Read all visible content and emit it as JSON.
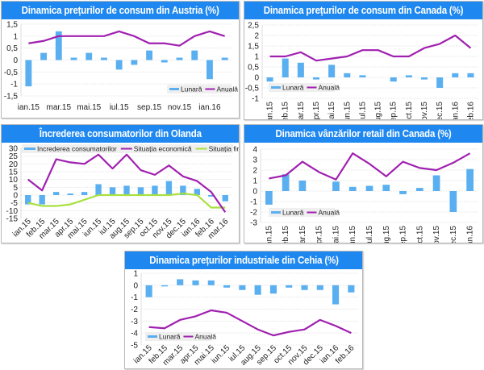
{
  "colors": {
    "bar": "#5aaff0",
    "annual": "#a020b0",
    "financial": "#a8e040",
    "title_bg": "#1e88f0",
    "grid": "#e4e4e4"
  },
  "chart_data": [
    {
      "id": "austria-cpi",
      "type": "bar+line",
      "title": "Dinamica prețurilor de consum din Austria (%)",
      "categories": [
        "ian.15",
        "feb.15",
        "mar.15",
        "apr.15",
        "mai.15",
        "iun.15",
        "iul.15",
        "aug.15",
        "sep.15",
        "oct.15",
        "nov.15",
        "dec.15",
        "ian.16",
        "feb.16"
      ],
      "x_tick_labels": [
        "ian.15",
        "mar.15",
        "mai.15",
        "iul.15",
        "sep.15",
        "nov.15",
        "ian.16"
      ],
      "series": [
        {
          "name": "Lunară",
          "kind": "bar",
          "values": [
            -1.1,
            0.3,
            1.2,
            0.1,
            0.3,
            0.1,
            -0.4,
            -0.2,
            0.4,
            -0.1,
            0.1,
            0.4,
            -0.8,
            0.1
          ]
        },
        {
          "name": "Anuală",
          "kind": "line",
          "values": [
            0.7,
            0.8,
            1.0,
            1.0,
            1.0,
            1.0,
            1.2,
            1.0,
            0.7,
            0.7,
            0.6,
            1.0,
            1.2,
            1.0
          ]
        }
      ],
      "y_ticks": [
        "1,5",
        "1",
        "0,5",
        "0",
        "-0,5",
        "-1",
        "-1,5"
      ],
      "ylim": [
        -1.5,
        1.5
      ],
      "legend": "bottom-right",
      "xlabel": "",
      "ylabel": ""
    },
    {
      "id": "canada-cpi",
      "type": "bar+line",
      "title": "Dinamica prețurilor de consum din Canada (%)",
      "categories": [
        "ian.15",
        "feb.15",
        "mar.15",
        "apr.15",
        "mai.15",
        "iun.15",
        "iul.15",
        "aug.15",
        "sep.15",
        "oct.15",
        "nov.15",
        "dec.15",
        "ian.16",
        "feb.16"
      ],
      "x_tick_labels": [
        "ian.15",
        "feb.15",
        "mar.15",
        "apr.15",
        "mai.15",
        "iun.15",
        "iul.15",
        "aug.15",
        "sep.15",
        "oct.15",
        "nov.15",
        "dec.15",
        "ian.16",
        "feb.16"
      ],
      "series": [
        {
          "name": "Lunară",
          "kind": "bar",
          "values": [
            -0.2,
            0.9,
            0.7,
            -0.1,
            0.6,
            0.2,
            0.1,
            0.0,
            -0.2,
            0.1,
            -0.1,
            -0.5,
            0.2,
            0.2
          ]
        },
        {
          "name": "Anuală",
          "kind": "line",
          "values": [
            1.0,
            1.0,
            1.2,
            0.8,
            0.9,
            1.0,
            1.3,
            1.3,
            1.0,
            1.0,
            1.4,
            1.6,
            2.0,
            1.4
          ]
        }
      ],
      "y_ticks": [
        "2,5",
        "2",
        "1,5",
        "1",
        "0,5",
        "0",
        "-0,5",
        "-1"
      ],
      "ylim": [
        -1,
        2.5
      ],
      "legend": "bottom-left",
      "xlabel": "",
      "ylabel": ""
    },
    {
      "id": "olanda-confidence",
      "type": "bar+line",
      "title": "Încrederea consumatorilor din Olanda",
      "categories": [
        "ian.15",
        "feb.15",
        "mar.15",
        "apr.15",
        "mai.15",
        "iun.15",
        "iul.15",
        "aug.15",
        "sep.15",
        "oct.15",
        "nov.15",
        "dec.15",
        "ian.16",
        "feb.16",
        "mar.16"
      ],
      "x_tick_labels": [
        "ian.15",
        "feb.15",
        "mar.15",
        "apr.15",
        "mai.15",
        "iun.15",
        "iul.15",
        "aug.15",
        "sep.15",
        "oct.15",
        "nov.15",
        "dec.15",
        "ian.16",
        "feb.16",
        "mar.16"
      ],
      "series": [
        {
          "name": "Increderea consumatorilor",
          "kind": "bar",
          "values": [
            -6,
            -6,
            2,
            1,
            2,
            7,
            5,
            6,
            5,
            6,
            9,
            6,
            4,
            -1,
            -4
          ]
        },
        {
          "name": "Situația economică",
          "kind": "line",
          "values": [
            10,
            3,
            23,
            21,
            20,
            26,
            17,
            26,
            16,
            13,
            19,
            12,
            9,
            2,
            -11
          ]
        },
        {
          "name": "Situația financiară",
          "kind": "line",
          "values": [
            -5,
            -7,
            -7,
            -6,
            -3,
            0,
            0,
            0,
            0,
            0,
            0,
            1,
            0,
            -8,
            -8
          ]
        }
      ],
      "y_ticks": [
        "30",
        "25",
        "20",
        "15",
        "10",
        "5",
        "0",
        "-5",
        "-10",
        "-15"
      ],
      "ylim": [
        -15,
        30
      ],
      "legend": "top",
      "xlabel": "",
      "ylabel": ""
    },
    {
      "id": "canada-retail",
      "type": "bar+line",
      "title": "Dinamica vânzărilor retail din Canada (%)",
      "categories": [
        "ian.15",
        "feb.15",
        "mar.15",
        "apr.15",
        "mai.15",
        "iun.15",
        "iul.15",
        "aug.15",
        "sep.15",
        "oct.15",
        "nov.15",
        "dec.15",
        "ian.16"
      ],
      "x_tick_labels": [
        "ian.15",
        "feb.15",
        "mar.15",
        "apr.15",
        "mai.15",
        "iun.15",
        "iul.15",
        "aug.15",
        "sep.15",
        "oct.15",
        "nov.15",
        "dec.15",
        "ian.16"
      ],
      "series": [
        {
          "name": "Lunară",
          "kind": "bar",
          "values": [
            -1.3,
            1.6,
            1.0,
            0.0,
            0.9,
            0.4,
            0.5,
            0.6,
            -0.3,
            0.3,
            1.5,
            -2.0,
            2.1
          ]
        },
        {
          "name": "Anuală",
          "kind": "line",
          "values": [
            1.2,
            1.5,
            2.8,
            1.8,
            1.1,
            3.6,
            2.6,
            1.4,
            2.8,
            2.2,
            2.0,
            2.7,
            3.6
          ]
        }
      ],
      "y_ticks": [
        "4",
        "3",
        "2",
        "1",
        "0",
        "-1",
        "-2",
        "-3"
      ],
      "ylim": [
        -3,
        4
      ],
      "legend": "bottom-left",
      "xlabel": "",
      "ylabel": ""
    },
    {
      "id": "cehia-ppi",
      "type": "bar+line",
      "title": "Dinamica prețurilor industriale din Cehia (%)",
      "categories": [
        "ian.15",
        "feb.15",
        "mar.15",
        "apr.15",
        "mai.15",
        "iun.15",
        "iul.15",
        "aug.15",
        "sep.15",
        "oct.15",
        "nov.15",
        "dec.15",
        "ian.16",
        "feb.16"
      ],
      "x_tick_labels": [
        "ian.15",
        "feb.15",
        "mar.15",
        "apr.15",
        "mai.15",
        "iun.15",
        "iul.15",
        "aug.15",
        "sep.15",
        "oct.15",
        "nov.15",
        "dec.15",
        "ian.16",
        "feb.16"
      ],
      "series": [
        {
          "name": "Lunară",
          "kind": "bar",
          "values": [
            -1.0,
            -0.1,
            0.5,
            0.4,
            0.4,
            -0.2,
            -0.4,
            -0.8,
            -0.7,
            -0.2,
            -0.4,
            -0.4,
            -1.6,
            -0.6
          ]
        },
        {
          "name": "Anuală",
          "kind": "line",
          "values": [
            -3.5,
            -3.6,
            -2.9,
            -2.6,
            -2.1,
            -2.3,
            -3.0,
            -3.7,
            -4.2,
            -3.9,
            -3.7,
            -2.9,
            -3.4,
            -4.0
          ]
        }
      ],
      "y_ticks": [
        "1",
        "0",
        "-1",
        "-2",
        "-3",
        "-4",
        "-5"
      ],
      "ylim": [
        -5,
        1
      ],
      "legend": "bottom-left",
      "xlabel": "",
      "ylabel": ""
    }
  ]
}
